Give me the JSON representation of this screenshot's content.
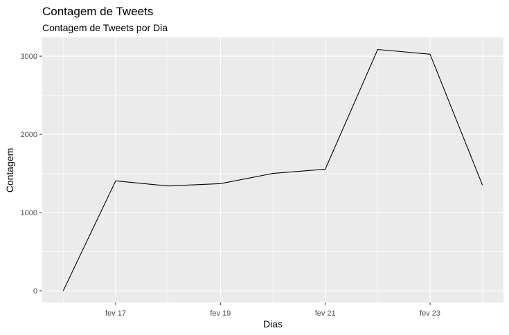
{
  "chart_data": {
    "type": "line",
    "title": "Contagem de Tweets",
    "subtitle": "Contagem de Tweets por Dia",
    "xlabel": "Dias",
    "ylabel": "Contagem",
    "x": [
      "2020-02-16",
      "2020-02-17",
      "2020-02-18",
      "2020-02-19",
      "2020-02-20",
      "2020-02-21",
      "2020-02-22",
      "2020-02-23",
      "2020-02-24"
    ],
    "series": [
      {
        "values": [
          0,
          1405,
          1340,
          1370,
          1500,
          1555,
          3085,
          3025,
          1350
        ]
      }
    ],
    "x_ticks": [
      {
        "x": "2020-02-17",
        "label": "fev 17"
      },
      {
        "x": "2020-02-19",
        "label": "fev 19"
      },
      {
        "x": "2020-02-21",
        "label": "fev 21"
      },
      {
        "x": "2020-02-23",
        "label": "fev 23"
      }
    ],
    "y_ticks": [
      0,
      1000,
      2000,
      3000
    ],
    "ylim": [
      -150,
      3240
    ],
    "grid": true,
    "line_color": "#000000",
    "panel_color": "#ebebeb",
    "grid_color": "#ffffff"
  }
}
